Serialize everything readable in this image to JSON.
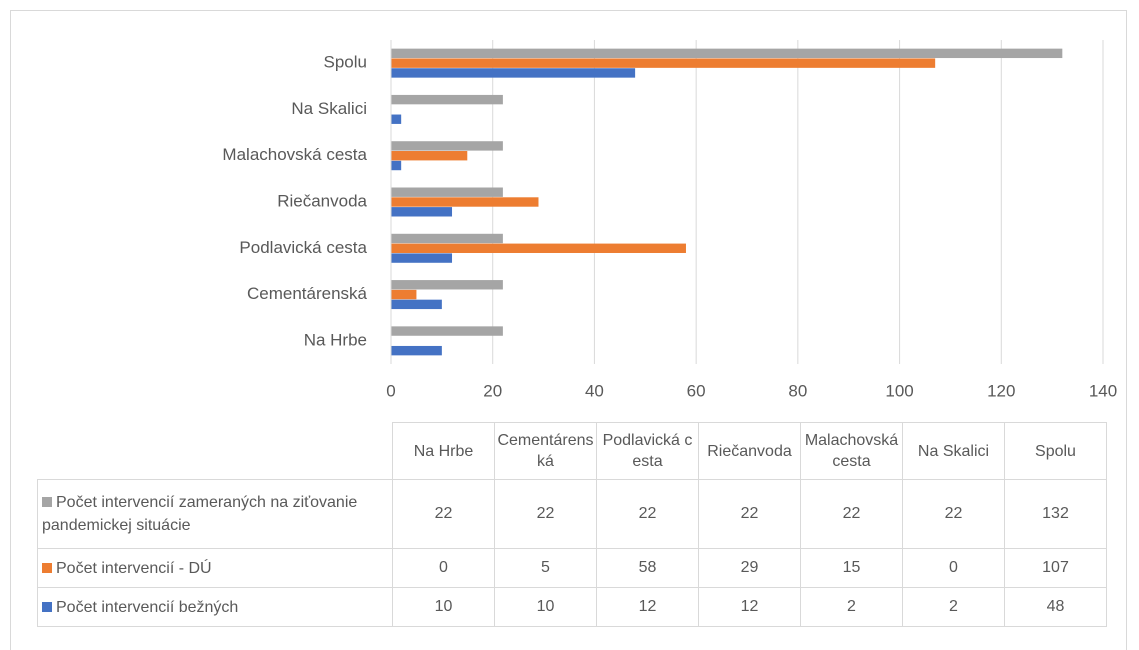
{
  "chart_data": {
    "type": "bar",
    "orientation": "horizontal",
    "categories": [
      "Na Hrbe",
      "Cementárenská",
      "Podlavická cesta",
      "Riečanvoda",
      "Malachovská cesta",
      "Na Skalici",
      "Spolu"
    ],
    "series": [
      {
        "name": "Počet intervencií zameraných na ziťovanie pandemickej situácie",
        "color": "#a5a5a5",
        "values": [
          22,
          22,
          22,
          22,
          22,
          22,
          132
        ]
      },
      {
        "name": "Počet intervencií - DÚ",
        "color": "#ed7d31",
        "values": [
          0,
          5,
          58,
          29,
          15,
          0,
          107
        ]
      },
      {
        "name": "Počet intervencií bežných",
        "color": "#4472c4",
        "values": [
          10,
          10,
          12,
          12,
          2,
          2,
          48
        ]
      }
    ],
    "xlim": [
      0,
      140
    ],
    "xticks": [
      0,
      20,
      40,
      60,
      80,
      100,
      120,
      140
    ],
    "grid": true,
    "data_table": true
  }
}
